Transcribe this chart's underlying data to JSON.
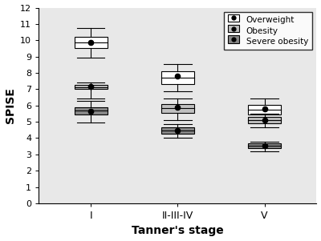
{
  "title": "",
  "xlabel": "Tanner's stage",
  "ylabel": "SPISE",
  "xlim": [
    0.4,
    3.6
  ],
  "ylim": [
    0,
    12
  ],
  "yticks": [
    0,
    1,
    2,
    3,
    4,
    5,
    6,
    7,
    8,
    9,
    10,
    11,
    12
  ],
  "xtick_labels": [
    "I",
    "II-III-IV",
    "V"
  ],
  "xtick_positions": [
    1,
    2,
    3
  ],
  "groups": [
    "Overweight",
    "Obesity",
    "Severe obesity"
  ],
  "group_colors": [
    "#ffffff",
    "#c0c0c0",
    "#888888"
  ],
  "group_offsets": [
    0.0,
    0.0,
    0.0
  ],
  "box_width": 0.38,
  "boxes": {
    "I": {
      "Overweight": {
        "q1": 9.5,
        "q3": 10.2,
        "whislo": 8.95,
        "whishi": 10.75,
        "mean": 9.85
      },
      "Obesity": {
        "q1": 7.0,
        "q3": 7.25,
        "whislo": 6.45,
        "whishi": 7.42,
        "mean": 7.15
      },
      "Severe obesity": {
        "q1": 5.45,
        "q3": 5.9,
        "whislo": 4.95,
        "whishi": 6.3,
        "mean": 5.65
      }
    },
    "II-III-IV": {
      "Overweight": {
        "q1": 7.3,
        "q3": 8.1,
        "whislo": 6.85,
        "whishi": 8.55,
        "mean": 7.82
      },
      "Obesity": {
        "q1": 5.55,
        "q3": 6.1,
        "whislo": 5.1,
        "whishi": 6.42,
        "mean": 5.9
      },
      "Severe obesity": {
        "q1": 4.25,
        "q3": 4.65,
        "whislo": 4.0,
        "whishi": 4.85,
        "mean": 4.48
      }
    },
    "V": {
      "Overweight": {
        "q1": 5.45,
        "q3": 6.05,
        "whislo": 5.05,
        "whishi": 6.42,
        "mean": 5.8
      },
      "Obesity": {
        "q1": 4.92,
        "q3": 5.28,
        "whislo": 4.65,
        "whishi": 5.48,
        "mean": 5.1
      },
      "Severe obesity": {
        "q1": 3.38,
        "q3": 3.68,
        "whislo": 3.18,
        "whishi": 3.78,
        "mean": 3.55
      }
    }
  },
  "bg_color": "#e8e8e8",
  "legend_loc": "upper right",
  "figsize": [
    4.0,
    3.01
  ],
  "dpi": 100
}
